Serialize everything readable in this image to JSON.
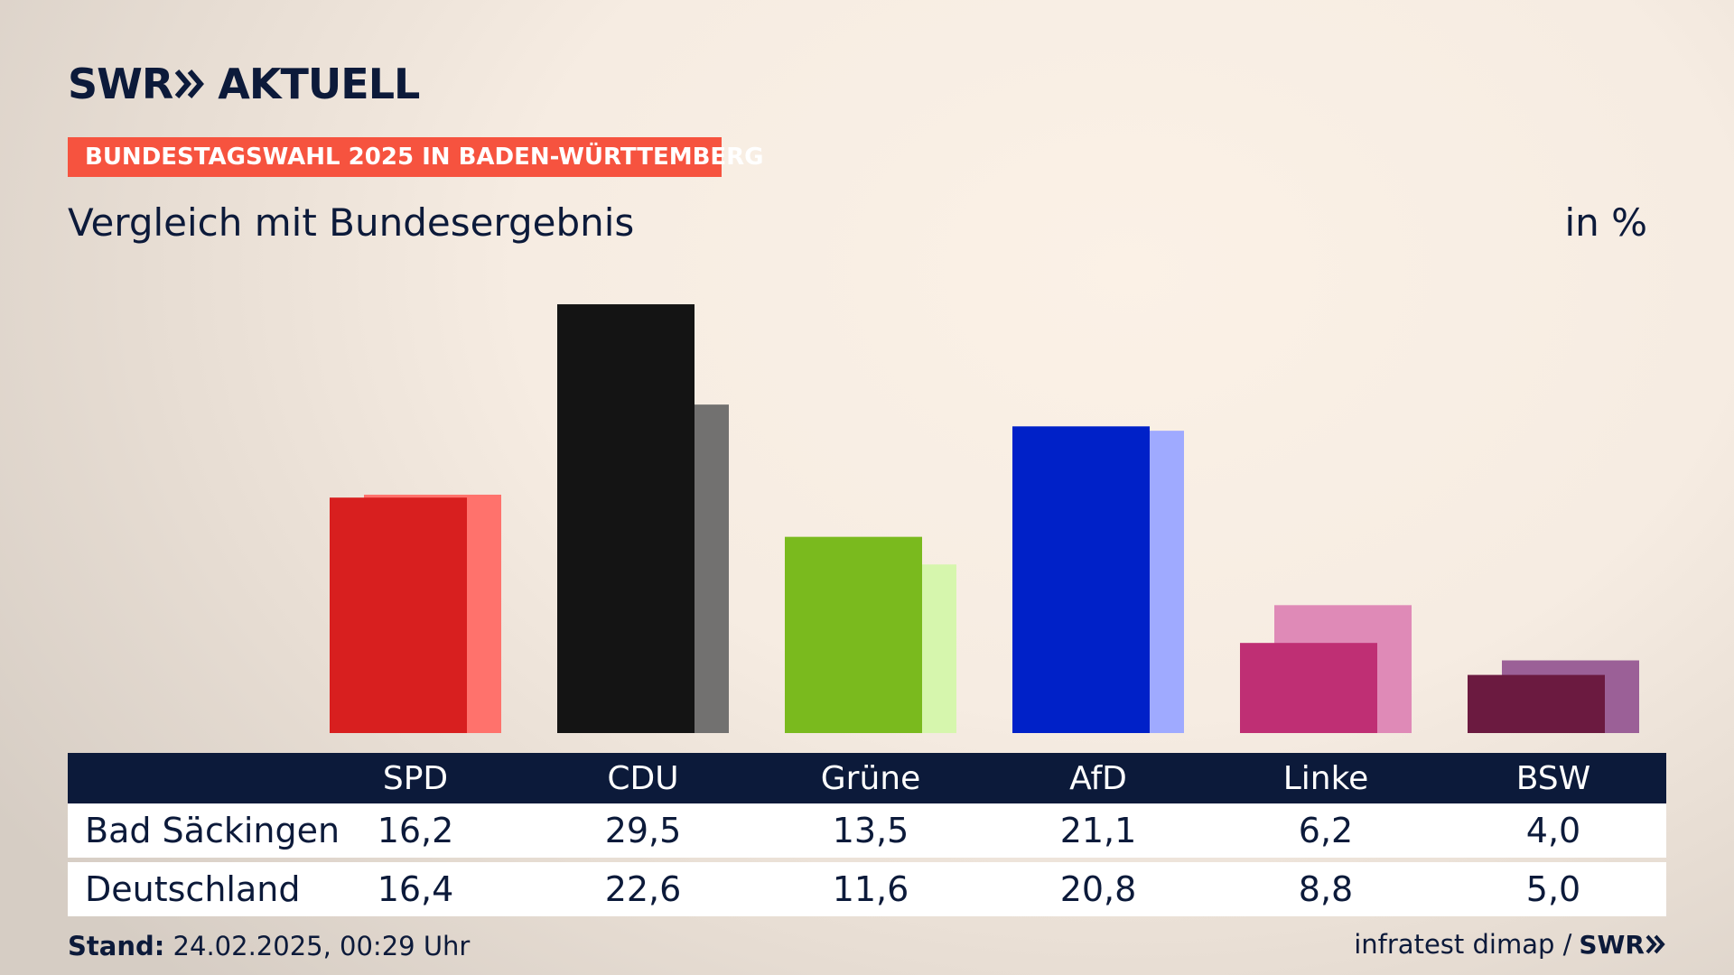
{
  "brand": {
    "swr": "SWR",
    "aktuell": "AKTUELL"
  },
  "banner": "BUNDESTAGSWAHL 2025 IN BADEN-WÜRTTEMBERG",
  "subtitle": "Vergleich mit Bundesergebnis",
  "unit": "in %",
  "footer": {
    "stand_label": "Stand:",
    "stand_value": "24.02.2025, 00:29 Uhr",
    "source": "infratest dimap /",
    "source_logo": "SWR"
  },
  "chart_data": {
    "type": "bar",
    "categories": [
      "SPD",
      "CDU",
      "Grüne",
      "AfD",
      "Linke",
      "BSW"
    ],
    "series": [
      {
        "name": "Bad Säckingen",
        "values": [
          16.2,
          29.5,
          13.5,
          21.1,
          6.2,
          4.0
        ],
        "display": [
          "16,2",
          "29,5",
          "13,5",
          "21,1",
          "6,2",
          "4,0"
        ]
      },
      {
        "name": "Deutschland",
        "values": [
          16.4,
          22.6,
          11.6,
          20.8,
          8.8,
          5.0
        ],
        "display": [
          "16,4",
          "22,6",
          "11,6",
          "20,8",
          "8,8",
          "5,0"
        ]
      }
    ],
    "colors": {
      "primary": [
        "#d81f1f",
        "#141414",
        "#7aba1e",
        "#0021c8",
        "#bf2f74",
        "#6b1a40"
      ],
      "secondary": [
        "#ff726c",
        "#727170",
        "#d6f6ad",
        "#9faaff",
        "#df8ab7",
        "#9b6097"
      ]
    },
    "ylim": [
      0,
      30
    ],
    "grid": false,
    "legend": "table-below"
  }
}
